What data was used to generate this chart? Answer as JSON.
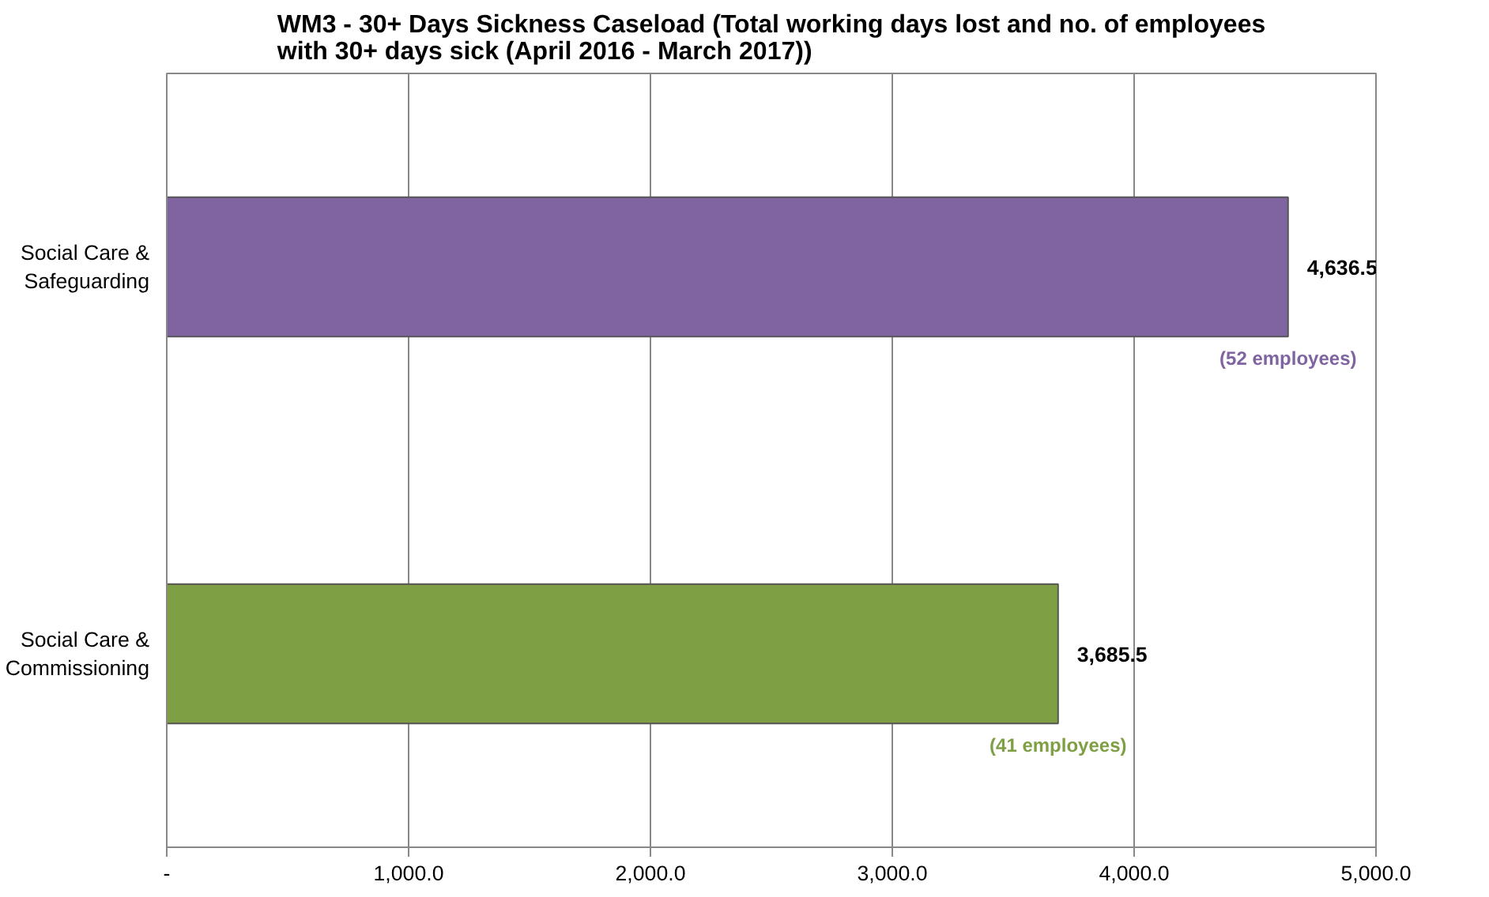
{
  "chart_data": {
    "type": "bar",
    "orientation": "horizontal",
    "title": "WM3 - 30+ Days Sickness Caseload (Total working days lost and no. of employees with 30+ days sick (April 2016 - March 2017))",
    "categories": [
      "Social Care &\nSafeguarding",
      "Social Care &\nCommissioning"
    ],
    "values": [
      4636.5,
      3685.5
    ],
    "colors": [
      "#8064a2",
      "#7f9f45"
    ],
    "value_labels": [
      "4,636.5",
      "3,685.5"
    ],
    "annotations": [
      "(52 employees)",
      "(41 employees)"
    ],
    "xlim": [
      0,
      5000
    ],
    "xticks": [
      {
        "value": 0,
        "label": "-"
      },
      {
        "value": 1000,
        "label": "1,000.0"
      },
      {
        "value": 2000,
        "label": "2,000.0"
      },
      {
        "value": 3000,
        "label": "3,000.0"
      },
      {
        "value": 4000,
        "label": "4,000.0"
      },
      {
        "value": 5000,
        "label": "5,000.0"
      }
    ],
    "grid": "x"
  }
}
